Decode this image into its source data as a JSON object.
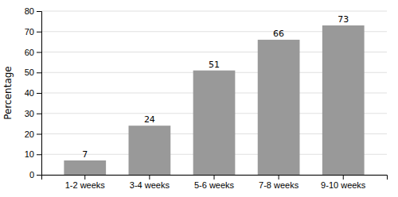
{
  "chart_data": {
    "type": "bar",
    "ylabel": "Percentage",
    "categories": [
      "1-2 weeks",
      "3-4 weeks",
      "5-6 weeks",
      "7-8 weeks",
      "9-10 weeks"
    ],
    "values": [
      7,
      24,
      51,
      66,
      73
    ],
    "color": "#999999",
    "ylim": [
      0,
      80
    ],
    "yticks": [
      0,
      10,
      20,
      30,
      40,
      50,
      60,
      70,
      80
    ],
    "grid": true,
    "data_labels": true
  }
}
